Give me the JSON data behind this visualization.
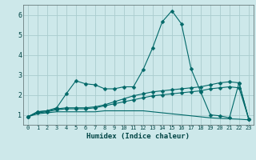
{
  "xlabel": "Humidex (Indice chaleur)",
  "x": [
    0,
    1,
    2,
    3,
    4,
    5,
    6,
    7,
    8,
    9,
    10,
    11,
    12,
    13,
    14,
    15,
    16,
    17,
    18,
    19,
    20,
    21,
    22,
    23
  ],
  "line1": [
    0.9,
    1.15,
    1.2,
    1.35,
    2.05,
    2.7,
    2.55,
    2.5,
    2.3,
    2.3,
    2.4,
    2.4,
    3.25,
    4.35,
    5.65,
    6.2,
    5.55,
    3.3,
    2.15,
    1.0,
    0.95,
    0.85,
    2.6,
    0.8
  ],
  "line2": [
    0.9,
    1.15,
    1.2,
    1.3,
    1.35,
    1.35,
    1.35,
    1.4,
    1.5,
    1.65,
    1.8,
    1.95,
    2.05,
    2.15,
    2.2,
    2.25,
    2.3,
    2.35,
    2.4,
    2.5,
    2.6,
    2.65,
    2.6,
    0.8
  ],
  "line3": [
    0.9,
    1.1,
    1.15,
    1.25,
    1.3,
    1.3,
    1.3,
    1.35,
    1.45,
    1.55,
    1.65,
    1.75,
    1.85,
    1.95,
    2.0,
    2.05,
    2.1,
    2.15,
    2.2,
    2.3,
    2.35,
    2.4,
    2.35,
    0.8
  ],
  "line4": [
    0.9,
    1.05,
    1.1,
    1.15,
    1.15,
    1.15,
    1.15,
    1.15,
    1.2,
    1.2,
    1.2,
    1.2,
    1.2,
    1.15,
    1.1,
    1.05,
    1.0,
    0.95,
    0.9,
    0.85,
    0.82,
    0.8,
    0.78,
    0.75
  ],
  "bg_color": "#cde8ea",
  "grid_color": "#aaccce",
  "line_color": "#006868",
  "ylim": [
    0.5,
    6.5
  ],
  "xlim": [
    -0.5,
    23.5
  ],
  "yticks": [
    1,
    2,
    3,
    4,
    5,
    6
  ],
  "xticks": [
    0,
    1,
    2,
    3,
    4,
    5,
    6,
    7,
    8,
    9,
    10,
    11,
    12,
    13,
    14,
    15,
    16,
    17,
    18,
    19,
    20,
    21,
    22,
    23
  ]
}
